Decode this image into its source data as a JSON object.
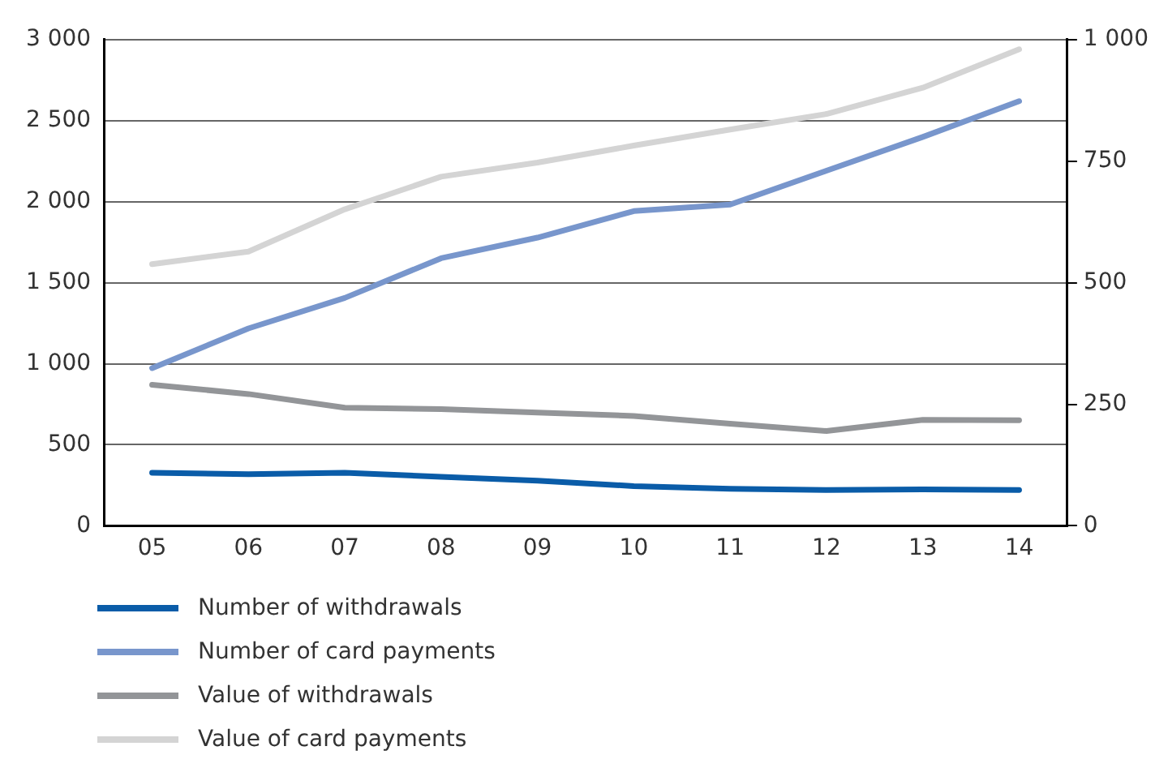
{
  "chart_data": {
    "type": "line",
    "categories": [
      "05",
      "06",
      "07",
      "08",
      "09",
      "10",
      "11",
      "12",
      "13",
      "14"
    ],
    "series": [
      {
        "name": "Number of withdrawals",
        "color": "#0a5ca8",
        "values": [
          327,
          319,
          327,
          302,
          278,
          245,
          229,
          221,
          225,
          221
        ]
      },
      {
        "name": "Number of card payments",
        "color": "#7896cc",
        "values": [
          973,
          1218,
          1406,
          1651,
          1778,
          1942,
          1982,
          2191,
          2399,
          2620
        ]
      },
      {
        "name": "Value of withdrawals",
        "color": "#939598",
        "axis": "y2",
        "values": [
          290,
          271,
          243,
          240,
          233,
          226,
          210,
          195,
          218,
          217
        ]
      },
      {
        "name": "Value of card payments",
        "color": "#d4d4d4",
        "axis": "y2",
        "values": [
          538,
          564,
          651,
          718,
          747,
          782,
          815,
          847,
          901,
          980
        ]
      }
    ],
    "ylim": [
      0,
      3000
    ],
    "yticks": [
      {
        "value": 0,
        "label": "0"
      },
      {
        "value": 500,
        "label": "500"
      },
      {
        "value": 1000,
        "label": "1 000"
      },
      {
        "value": 1500,
        "label": "1 500"
      },
      {
        "value": 2000,
        "label": "2 000"
      },
      {
        "value": 2500,
        "label": "2 500"
      },
      {
        "value": 3000,
        "label": "3 000"
      }
    ],
    "y2lim": [
      0,
      1000
    ],
    "y2ticks": [
      {
        "value": 0,
        "label": "0"
      },
      {
        "value": 250,
        "label": "250"
      },
      {
        "value": 500,
        "label": "500"
      },
      {
        "value": 750,
        "label": "750"
      },
      {
        "value": 1000,
        "label": "1 000"
      }
    ],
    "grid": "y",
    "legend": "bottom",
    "marker": "none",
    "line_style": "solid"
  }
}
